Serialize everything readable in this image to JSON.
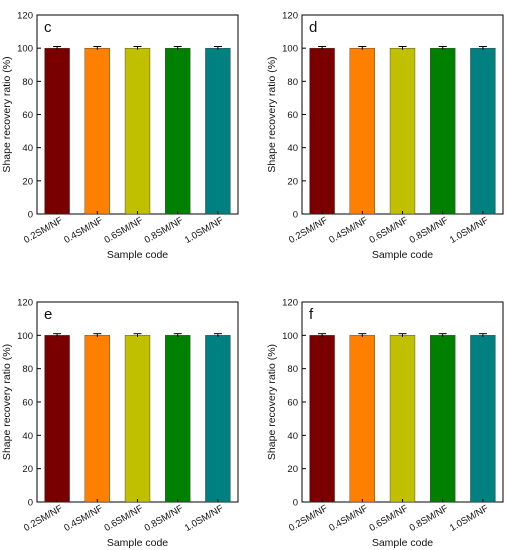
{
  "chart_data": [
    {
      "type": "bar",
      "panel_label": "c",
      "categories": [
        "0.2SM/NF",
        "0.4SM/NF",
        "0.6SM/NF",
        "0.8SM/NF",
        "1.0SM/NF"
      ],
      "values": [
        100,
        100,
        100,
        100,
        100
      ],
      "errors": [
        0.4,
        0.4,
        0.4,
        0.4,
        0.4
      ],
      "colors": [
        "#7a0000",
        "#ff8000",
        "#c0c000",
        "#008000",
        "#008080"
      ],
      "xlabel": "Sample code",
      "ylabel": "Shape recovery ratio (%)",
      "ylim": [
        0,
        120
      ],
      "yticks": [
        0,
        20,
        40,
        60,
        80,
        100,
        120
      ]
    },
    {
      "type": "bar",
      "panel_label": "d",
      "categories": [
        "0.2SM/NF",
        "0.4SM/NF",
        "0.6SM/NF",
        "0.8SM/NF",
        "1.0SM/NF"
      ],
      "values": [
        100,
        100,
        100,
        100,
        100
      ],
      "errors": [
        0.4,
        0.4,
        0.4,
        0.4,
        0.4
      ],
      "colors": [
        "#7a0000",
        "#ff8000",
        "#c0c000",
        "#008000",
        "#008080"
      ],
      "xlabel": "Sample code",
      "ylabel": "Shape recovery ratio (%)",
      "ylim": [
        0,
        120
      ],
      "yticks": [
        0,
        20,
        40,
        60,
        80,
        100,
        120
      ]
    },
    {
      "type": "bar",
      "panel_label": "e",
      "categories": [
        "0.2SM/NF",
        "0.4SM/NF",
        "0.6SM/NF",
        "0.8SM/NF",
        "1.0SM/NF"
      ],
      "values": [
        100,
        100,
        100,
        100,
        100
      ],
      "errors": [
        0.4,
        0.4,
        0.4,
        0.4,
        0.4
      ],
      "colors": [
        "#7a0000",
        "#ff8000",
        "#c0c000",
        "#008000",
        "#008080"
      ],
      "xlabel": "Sample code",
      "ylabel": "Shape recovery ratio (%)",
      "ylim": [
        0,
        120
      ],
      "yticks": [
        0,
        20,
        40,
        60,
        80,
        100,
        120
      ]
    },
    {
      "type": "bar",
      "panel_label": "f",
      "categories": [
        "0.2SM/NF",
        "0.4SM/NF",
        "0.6SM/NF",
        "0.8SM/NF",
        "1.0SM/NF"
      ],
      "values": [
        100,
        100,
        100,
        100,
        100
      ],
      "errors": [
        0.4,
        0.4,
        0.4,
        0.4,
        0.4
      ],
      "colors": [
        "#7a0000",
        "#ff8000",
        "#c0c000",
        "#008000",
        "#008080"
      ],
      "xlabel": "Sample code",
      "ylabel": "Shape recovery ratio (%)",
      "ylim": [
        0,
        120
      ],
      "yticks": [
        0,
        20,
        40,
        60,
        80,
        100,
        120
      ]
    }
  ]
}
